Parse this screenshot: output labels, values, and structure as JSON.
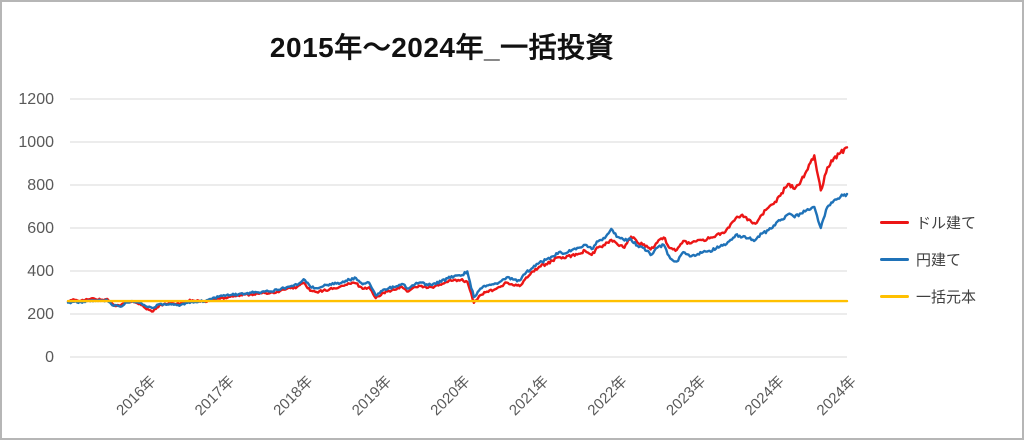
{
  "window": {
    "background": "#ffffff",
    "border_color": "#b6b6b6"
  },
  "title": "2015年～2024年_一括投資",
  "legend": {
    "items": [
      {
        "label": "ドル建て",
        "color": "#ec1515"
      },
      {
        "label": "円建て",
        "color": "#1f72b8"
      },
      {
        "label": "一括元本",
        "color": "#ffc000"
      }
    ]
  },
  "colors": {
    "grid": "#d9d9d9",
    "axis_text": "#595959",
    "legend_text": "#3f3f3f",
    "title_text": "#111111"
  },
  "chart_data": {
    "type": "line",
    "title": "2015年～2024年_一括投資",
    "xlabel": "",
    "ylabel": "",
    "ylim": [
      0,
      1200
    ],
    "yticks": [
      0,
      200,
      400,
      600,
      800,
      1000,
      1200
    ],
    "grid": "horizontal",
    "legend_position": "right",
    "x_start": "2015-01",
    "x_interval": "month",
    "points": 120,
    "xticks": [
      {
        "label": "2016年",
        "month_index": 12
      },
      {
        "label": "2017年",
        "month_index": 24
      },
      {
        "label": "2018年",
        "month_index": 36
      },
      {
        "label": "2019年",
        "month_index": 48
      },
      {
        "label": "2020年",
        "month_index": 60
      },
      {
        "label": "2021年",
        "month_index": 72
      },
      {
        "label": "2022年",
        "month_index": 84
      },
      {
        "label": "2023年",
        "month_index": 96
      },
      {
        "label": "2024年",
        "month_index": 108
      },
      {
        "label": "2024年",
        "month_index": 119
      }
    ],
    "series": [
      {
        "name": "ドル建て",
        "color": "#ec1515",
        "values": [
          258,
          266,
          262,
          268,
          272,
          265,
          270,
          243,
          238,
          258,
          256,
          248,
          222,
          212,
          242,
          246,
          250,
          246,
          260,
          264,
          262,
          256,
          266,
          272,
          276,
          284,
          286,
          290,
          292,
          295,
          298,
          299,
          305,
          313,
          320,
          326,
          345,
          308,
          302,
          309,
          316,
          319,
          331,
          341,
          343,
          317,
          324,
          274,
          297,
          308,
          313,
          326,
          305,
          326,
          331,
          322,
          328,
          336,
          349,
          359,
          358,
          350,
          252,
          288,
          304,
          311,
          326,
          346,
          334,
          330,
          370,
          398,
          420,
          432,
          448,
          464,
          460,
          474,
          480,
          494,
          475,
          510,
          520,
          545,
          522,
          508,
          560,
          532,
          524,
          500,
          532,
          556,
          506,
          498,
          540,
          528,
          538,
          546,
          552,
          566,
          578,
          602,
          645,
          662,
          640,
          620,
          662,
          695,
          722,
          762,
          805,
          782,
          822,
          872,
          938,
          775,
          882,
          925,
          950,
          975
        ]
      },
      {
        "name": "円建て",
        "color": "#1f72b8",
        "values": [
          253,
          257,
          255,
          261,
          264,
          261,
          263,
          238,
          234,
          253,
          256,
          251,
          234,
          228,
          246,
          243,
          246,
          238,
          252,
          256,
          258,
          260,
          270,
          280,
          284,
          289,
          291,
          294,
          299,
          301,
          304,
          305,
          311,
          321,
          329,
          335,
          362,
          328,
          320,
          329,
          339,
          341,
          351,
          359,
          367,
          338,
          346,
          287,
          308,
          320,
          326,
          340,
          318,
          338,
          346,
          334,
          343,
          350,
          366,
          376,
          378,
          398,
          278,
          318,
          333,
          338,
          350,
          370,
          360,
          356,
          394,
          415,
          438,
          452,
          468,
          488,
          482,
          498,
          508,
          522,
          502,
          538,
          552,
          596,
          558,
          542,
          548,
          518,
          508,
          474,
          508,
          522,
          458,
          444,
          488,
          468,
          474,
          488,
          494,
          504,
          518,
          538,
          568,
          558,
          552,
          544,
          574,
          590,
          612,
          640,
          664,
          650,
          668,
          688,
          698,
          600,
          698,
          728,
          745,
          758
        ]
      },
      {
        "name": "一括元本",
        "color": "#ffc000",
        "constant": 260
      }
    ]
  }
}
